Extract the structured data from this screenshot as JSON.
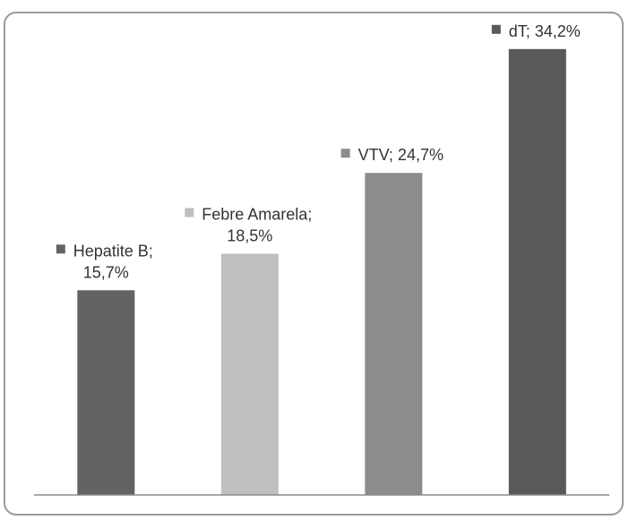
{
  "chart_data": {
    "type": "bar",
    "categories": [
      "Hepatite B",
      "Febre Amarela",
      "VTV",
      "dT"
    ],
    "values": [
      15.7,
      18.5,
      24.7,
      34.2
    ],
    "value_unit": "%",
    "data_labels": [
      [
        "Hepatite B;",
        "15,7%"
      ],
      [
        "Febre Amarela;",
        "18,5%"
      ],
      [
        "VTV; 24,7%"
      ],
      [
        "dT; 34,2%"
      ]
    ],
    "colors": [
      "#636363",
      "#bfbfbf",
      "#8c8c8c",
      "#595959"
    ],
    "title": "",
    "xlabel": "",
    "ylabel": "",
    "ylim": [
      0,
      37
    ],
    "grid": false,
    "legend": "none"
  }
}
